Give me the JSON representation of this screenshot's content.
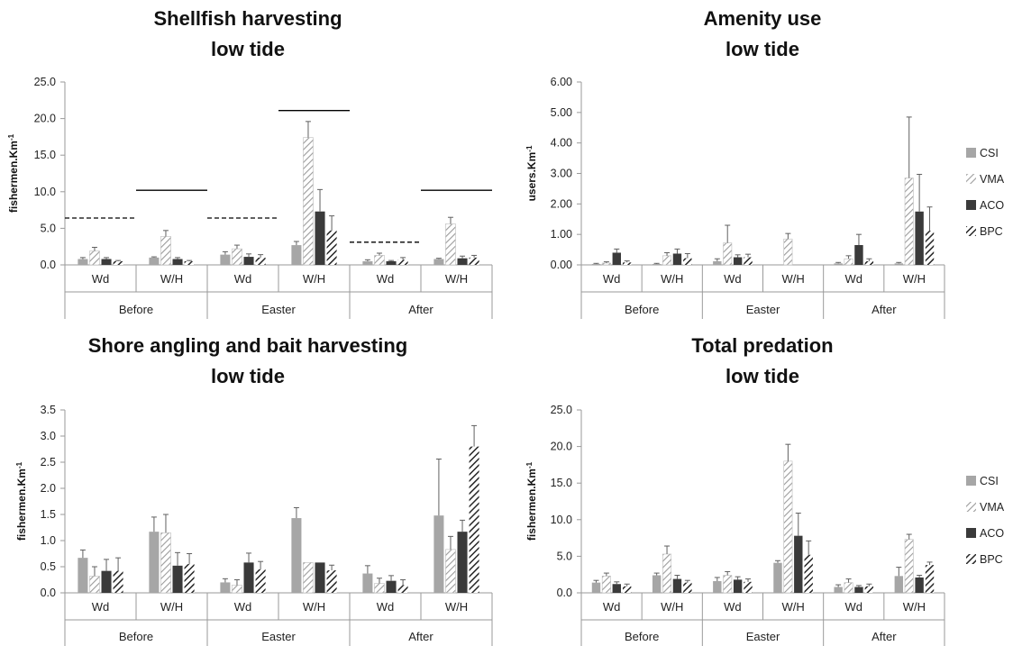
{
  "colors": {
    "CSI": "#a6a6a6",
    "VMA": "#8c8c8c",
    "ACO": "#3a3a3a",
    "BPC": "#262626",
    "axis": "#9a9a9a",
    "errorbar": "#606060",
    "ref_line": "#000000"
  },
  "chart_data": [
    {
      "type": "bar",
      "title": "Shellfish harvesting",
      "subtitle": "low tide",
      "ylabel": "fishermen.Km",
      "ylabel_sup": "-1",
      "ylim": [
        0,
        25
      ],
      "yticks": [
        "0.0",
        "5.0",
        "10.0",
        "15.0",
        "20.0",
        "25.0"
      ],
      "periods": [
        "Before",
        "Easter",
        "After"
      ],
      "categories": [
        "Wd",
        "W/H",
        "Wd",
        "W/H",
        "Wd",
        "W/H"
      ],
      "legend": false,
      "series": [
        {
          "name": "CSI",
          "values": [
            0.8,
            1.0,
            1.4,
            2.7,
            0.5,
            0.8
          ],
          "errors": [
            0.2,
            0.1,
            0.4,
            0.5,
            0.2,
            0.1
          ]
        },
        {
          "name": "VMA",
          "values": [
            1.9,
            3.9,
            2.2,
            17.4,
            1.3,
            5.6
          ],
          "errors": [
            0.5,
            0.8,
            0.5,
            2.2,
            0.3,
            0.9
          ]
        },
        {
          "name": "ACO",
          "values": [
            0.8,
            0.8,
            1.1,
            7.3,
            0.5,
            0.9
          ],
          "errors": [
            0.2,
            0.2,
            0.4,
            3.0,
            0.1,
            0.3
          ]
        },
        {
          "name": "BPC",
          "values": [
            0.5,
            0.5,
            1.0,
            4.7,
            0.7,
            1.0
          ],
          "errors": [
            0.1,
            0.1,
            0.4,
            2.0,
            0.3,
            0.3
          ]
        }
      ],
      "reference_lines": [
        {
          "group": 0,
          "value": 6.4,
          "style": "dashed"
        },
        {
          "group": 1,
          "value": 10.2,
          "style": "solid"
        },
        {
          "group": 2,
          "value": 6.4,
          "style": "dashed"
        },
        {
          "group": 3,
          "value": 21.1,
          "style": "solid"
        },
        {
          "group": 4,
          "value": 3.1,
          "style": "dashed"
        },
        {
          "group": 5,
          "value": 10.2,
          "style": "solid"
        }
      ]
    },
    {
      "type": "bar",
      "title": "Amenity use",
      "subtitle": "low tide",
      "ylabel": "users.Km",
      "ylabel_sup": "-1",
      "ylim": [
        0,
        6
      ],
      "yticks": [
        "0.00",
        "1.00",
        "2.00",
        "3.00",
        "4.00",
        "5.00",
        "6.00"
      ],
      "periods": [
        "Before",
        "Easter",
        "After"
      ],
      "categories": [
        "Wd",
        "W/H",
        "Wd",
        "W/H",
        "Wd",
        "W/H"
      ],
      "legend": true,
      "series": [
        {
          "name": "CSI",
          "values": [
            0.03,
            0.03,
            0.12,
            0.0,
            0.05,
            0.05
          ],
          "errors": [
            0.02,
            0.02,
            0.08,
            0.0,
            0.03,
            0.03
          ]
        },
        {
          "name": "VMA",
          "values": [
            0.06,
            0.3,
            0.72,
            0.85,
            0.2,
            2.85
          ],
          "errors": [
            0.04,
            0.1,
            0.58,
            0.18,
            0.1,
            2.0
          ]
        },
        {
          "name": "ACO",
          "values": [
            0.4,
            0.37,
            0.25,
            0.0,
            0.65,
            1.75
          ],
          "errors": [
            0.12,
            0.15,
            0.08,
            0.0,
            0.35,
            1.22
          ]
        },
        {
          "name": "BPC",
          "values": [
            0.08,
            0.22,
            0.25,
            0.0,
            0.12,
            1.12
          ],
          "errors": [
            0.05,
            0.15,
            0.1,
            0.0,
            0.08,
            0.78
          ]
        }
      ]
    },
    {
      "type": "bar",
      "title": "Shore angling and bait harvesting",
      "subtitle": "low tide",
      "ylabel": "fishermen.Km",
      "ylabel_sup": "-1",
      "ylim": [
        0,
        3.5
      ],
      "yticks": [
        "0.0",
        "0.5",
        "1.0",
        "1.5",
        "2.0",
        "2.5",
        "3.0",
        "3.5"
      ],
      "periods": [
        "Before",
        "Easter",
        "After"
      ],
      "categories": [
        "Wd",
        "W/H",
        "Wd",
        "W/H",
        "Wd",
        "W/H"
      ],
      "legend": false,
      "series": [
        {
          "name": "CSI",
          "values": [
            0.67,
            1.17,
            0.2,
            1.43,
            0.37,
            1.48
          ],
          "errors": [
            0.15,
            0.28,
            0.07,
            0.2,
            0.15,
            1.08
          ]
        },
        {
          "name": "VMA",
          "values": [
            0.32,
            1.15,
            0.15,
            0.58,
            0.18,
            0.83
          ],
          "errors": [
            0.18,
            0.35,
            0.1,
            0.0,
            0.1,
            0.25
          ]
        },
        {
          "name": "ACO",
          "values": [
            0.42,
            0.52,
            0.58,
            0.58,
            0.23,
            1.17
          ],
          "errors": [
            0.22,
            0.25,
            0.18,
            0.0,
            0.1,
            0.22
          ]
        },
        {
          "name": "BPC",
          "values": [
            0.42,
            0.55,
            0.45,
            0.43,
            0.15,
            2.8
          ],
          "errors": [
            0.25,
            0.2,
            0.15,
            0.1,
            0.1,
            0.4
          ]
        }
      ]
    },
    {
      "type": "bar",
      "title": "Total predation",
      "subtitle": "low tide",
      "ylabel": "fishermen.Km",
      "ylabel_sup": "-1",
      "ylim": [
        0,
        25
      ],
      "yticks": [
        "0.0",
        "5.0",
        "10.0",
        "15.0",
        "20.0",
        "25.0"
      ],
      "periods": [
        "Before",
        "Easter",
        "After"
      ],
      "categories": [
        "Wd",
        "W/H",
        "Wd",
        "W/H",
        "Wd",
        "W/H"
      ],
      "legend": true,
      "series": [
        {
          "name": "CSI",
          "values": [
            1.4,
            2.4,
            1.6,
            4.1,
            0.8,
            2.3
          ],
          "errors": [
            0.3,
            0.3,
            0.5,
            0.3,
            0.3,
            1.2
          ]
        },
        {
          "name": "VMA",
          "values": [
            2.3,
            5.3,
            2.4,
            18.0,
            1.4,
            7.3
          ],
          "errors": [
            0.4,
            1.1,
            0.5,
            2.3,
            0.5,
            0.7
          ]
        },
        {
          "name": "ACO",
          "values": [
            1.2,
            1.9,
            1.8,
            7.8,
            0.8,
            2.1
          ],
          "errors": [
            0.3,
            0.5,
            0.4,
            3.1,
            0.2,
            0.3
          ]
        },
        {
          "name": "BPC",
          "values": [
            0.9,
            1.4,
            1.5,
            5.2,
            0.9,
            3.8
          ],
          "errors": [
            0.3,
            0.3,
            0.4,
            1.9,
            0.3,
            0.4
          ]
        }
      ]
    }
  ]
}
